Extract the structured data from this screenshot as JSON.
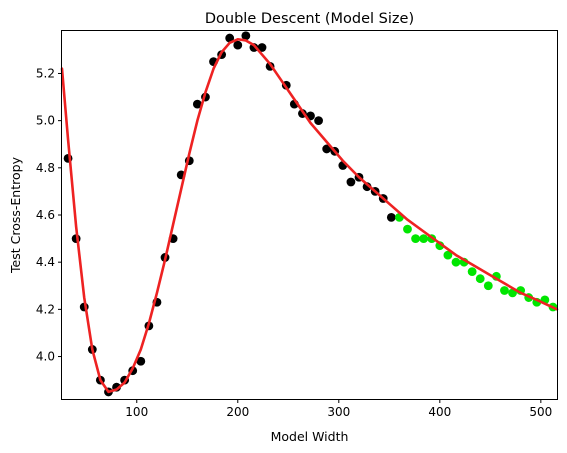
{
  "chart_data": {
    "type": "scatter",
    "title": "Double Descent (Model Size)",
    "xlabel": "Model Width",
    "ylabel": "Test Cross-Entropy",
    "xlim": [
      26,
      516
    ],
    "ylim": [
      3.82,
      5.38
    ],
    "x_ticks": [
      100,
      200,
      300,
      400,
      500
    ],
    "y_ticks": [
      4.0,
      4.2,
      4.4,
      4.6,
      4.8,
      5.0,
      5.2
    ],
    "grid": false,
    "colors": {
      "observed_points": "#000000",
      "extrapolated_points": "#00e600",
      "fit_curve": "#ee2222"
    },
    "series": [
      {
        "kind": "scatter",
        "color": "#000000",
        "points": [
          [
            32,
            4.84
          ],
          [
            40,
            4.5
          ],
          [
            48,
            4.21
          ],
          [
            56,
            4.03
          ],
          [
            64,
            3.9
          ],
          [
            72,
            3.85
          ],
          [
            80,
            3.87
          ],
          [
            88,
            3.9
          ],
          [
            96,
            3.94
          ],
          [
            104,
            3.98
          ],
          [
            112,
            4.13
          ],
          [
            120,
            4.23
          ],
          [
            128,
            4.42
          ],
          [
            136,
            4.5
          ],
          [
            144,
            4.77
          ],
          [
            152,
            4.83
          ],
          [
            160,
            5.07
          ],
          [
            168,
            5.1
          ],
          [
            176,
            5.25
          ],
          [
            184,
            5.28
          ],
          [
            192,
            5.35
          ],
          [
            200,
            5.32
          ],
          [
            208,
            5.36
          ],
          [
            216,
            5.31
          ],
          [
            224,
            5.31
          ],
          [
            232,
            5.23
          ],
          [
            248,
            5.15
          ],
          [
            256,
            5.07
          ],
          [
            264,
            5.03
          ],
          [
            272,
            5.02
          ],
          [
            280,
            5.0
          ],
          [
            288,
            4.88
          ],
          [
            296,
            4.87
          ],
          [
            304,
            4.81
          ],
          [
            312,
            4.74
          ],
          [
            320,
            4.76
          ],
          [
            328,
            4.72
          ],
          [
            336,
            4.7
          ],
          [
            344,
            4.67
          ],
          [
            352,
            4.59
          ]
        ]
      },
      {
        "kind": "scatter",
        "color": "#00e600",
        "points": [
          [
            360,
            4.59
          ],
          [
            368,
            4.54
          ],
          [
            376,
            4.5
          ],
          [
            384,
            4.5
          ],
          [
            392,
            4.5
          ],
          [
            400,
            4.47
          ],
          [
            408,
            4.43
          ],
          [
            416,
            4.4
          ],
          [
            424,
            4.4
          ],
          [
            432,
            4.36
          ],
          [
            440,
            4.33
          ],
          [
            448,
            4.3
          ],
          [
            456,
            4.34
          ],
          [
            464,
            4.28
          ],
          [
            472,
            4.27
          ],
          [
            480,
            4.28
          ],
          [
            488,
            4.25
          ],
          [
            496,
            4.23
          ],
          [
            504,
            4.24
          ],
          [
            512,
            4.21
          ]
        ]
      },
      {
        "kind": "line",
        "color": "#ee2222",
        "points": [
          [
            26,
            5.22
          ],
          [
            32,
            4.92
          ],
          [
            40,
            4.55
          ],
          [
            48,
            4.25
          ],
          [
            56,
            4.03
          ],
          [
            64,
            3.9
          ],
          [
            72,
            3.85
          ],
          [
            80,
            3.86
          ],
          [
            88,
            3.89
          ],
          [
            96,
            3.95
          ],
          [
            104,
            4.03
          ],
          [
            112,
            4.14
          ],
          [
            120,
            4.27
          ],
          [
            128,
            4.41
          ],
          [
            136,
            4.56
          ],
          [
            144,
            4.71
          ],
          [
            152,
            4.86
          ],
          [
            160,
            5.0
          ],
          [
            168,
            5.12
          ],
          [
            176,
            5.22
          ],
          [
            184,
            5.29
          ],
          [
            192,
            5.33
          ],
          [
            200,
            5.345
          ],
          [
            208,
            5.34
          ],
          [
            216,
            5.32
          ],
          [
            224,
            5.28
          ],
          [
            232,
            5.24
          ],
          [
            240,
            5.19
          ],
          [
            256,
            5.09
          ],
          [
            272,
            4.99
          ],
          [
            288,
            4.91
          ],
          [
            304,
            4.83
          ],
          [
            320,
            4.76
          ],
          [
            336,
            4.7
          ],
          [
            352,
            4.64
          ],
          [
            368,
            4.58
          ],
          [
            384,
            4.53
          ],
          [
            400,
            4.48
          ],
          [
            416,
            4.43
          ],
          [
            432,
            4.39
          ],
          [
            448,
            4.35
          ],
          [
            464,
            4.31
          ],
          [
            480,
            4.27
          ],
          [
            496,
            4.24
          ],
          [
            516,
            4.2
          ]
        ]
      }
    ]
  }
}
